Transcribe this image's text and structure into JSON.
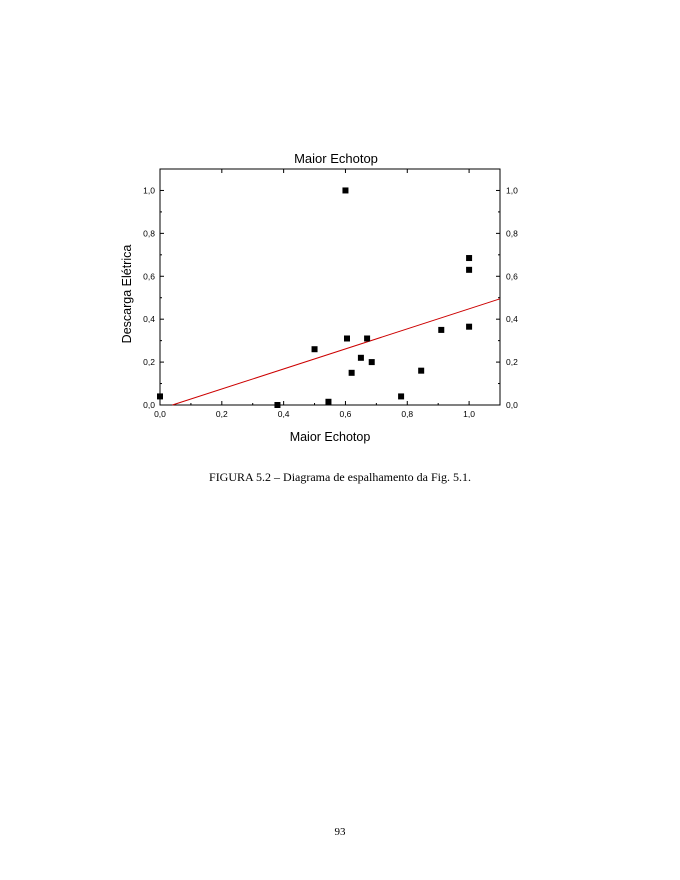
{
  "figure": {
    "caption": "FIGURA 5.2 – Diagrama de espalhamento da Fig. 5.1."
  },
  "page_number": "93",
  "chart_data": {
    "type": "scatter",
    "title": "Maior Echotop",
    "xlabel": "Maior Echotop",
    "ylabel": "Descarga Elétrica",
    "xlim": [
      0.0,
      1.1
    ],
    "ylim": [
      0.0,
      1.1
    ],
    "x_ticks": [
      0.0,
      0.2,
      0.4,
      0.6,
      0.8,
      1.0
    ],
    "x_tick_labels": [
      "0,0",
      "0,2",
      "0,4",
      "0,6",
      "0,8",
      "1,0"
    ],
    "y_ticks": [
      0.0,
      0.2,
      0.4,
      0.6,
      0.8,
      1.0
    ],
    "y_tick_labels": [
      "0,0",
      "0,2",
      "0,4",
      "0,6",
      "0,8",
      "1,0"
    ],
    "right_axis_ticks": true,
    "grid": false,
    "legend": "none",
    "series": [
      {
        "marker": "square",
        "color": "#000000",
        "points": [
          {
            "x": 0.0,
            "y": 0.04
          },
          {
            "x": 0.38,
            "y": 0.0
          },
          {
            "x": 0.5,
            "y": 0.26
          },
          {
            "x": 0.545,
            "y": 0.015
          },
          {
            "x": 0.6,
            "y": 1.0
          },
          {
            "x": 0.605,
            "y": 0.31
          },
          {
            "x": 0.62,
            "y": 0.15
          },
          {
            "x": 0.65,
            "y": 0.22
          },
          {
            "x": 0.67,
            "y": 0.31
          },
          {
            "x": 0.685,
            "y": 0.2
          },
          {
            "x": 0.78,
            "y": 0.04
          },
          {
            "x": 0.845,
            "y": 0.16
          },
          {
            "x": 0.91,
            "y": 0.35
          },
          {
            "x": 1.0,
            "y": 0.685
          },
          {
            "x": 1.0,
            "y": 0.63
          },
          {
            "x": 1.0,
            "y": 0.365
          }
        ]
      }
    ],
    "trendline": {
      "color": "#cc0000",
      "points": [
        {
          "x": 0.04,
          "y": 0.0
        },
        {
          "x": 1.1,
          "y": 0.495
        }
      ]
    }
  }
}
